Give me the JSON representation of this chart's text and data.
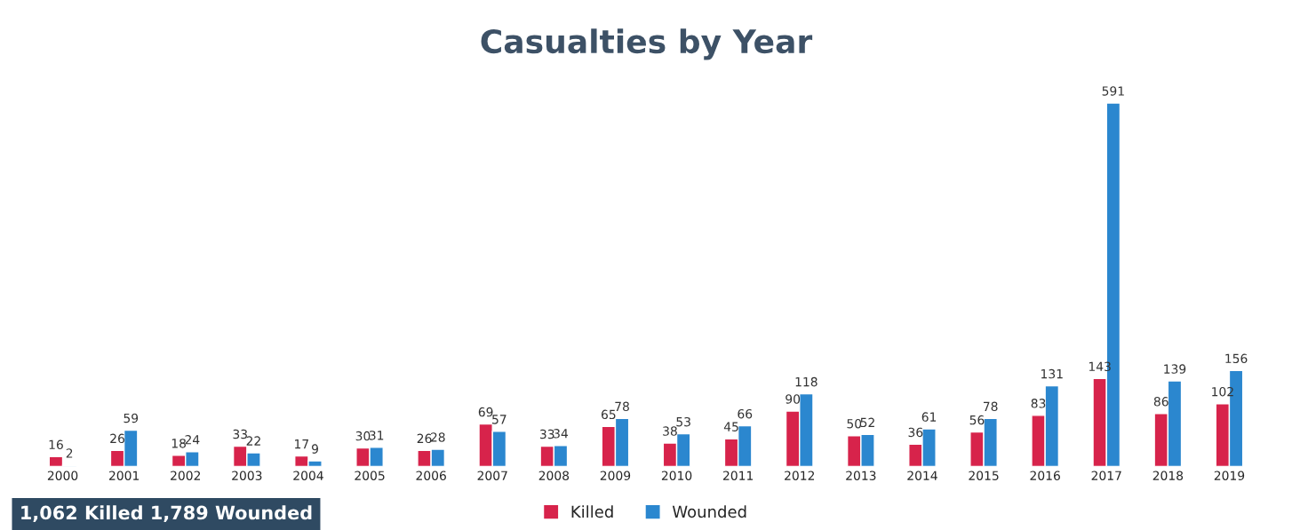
{
  "chart_data": {
    "type": "bar",
    "title": "Casualties by Year",
    "categories": [
      "2000",
      "2001",
      "2002",
      "2003",
      "2004",
      "2005",
      "2006",
      "2007",
      "2008",
      "2009",
      "2010",
      "2011",
      "2012",
      "2013",
      "2014",
      "2015",
      "2016",
      "2017",
      "2018",
      "2019"
    ],
    "series": [
      {
        "name": "Killed",
        "color": "#d7234b",
        "values": [
          16,
          26,
          18,
          33,
          17,
          30,
          26,
          69,
          33,
          65,
          38,
          45,
          90,
          50,
          36,
          56,
          83,
          143,
          86,
          102
        ]
      },
      {
        "name": "Wounded",
        "color": "#2b87cf",
        "values": [
          2,
          59,
          24,
          22,
          9,
          31,
          28,
          57,
          34,
          78,
          53,
          66,
          118,
          52,
          61,
          78,
          131,
          591,
          139,
          156
        ]
      }
    ],
    "data_labels": true,
    "legend": "bottom",
    "grid": false,
    "annotations": [
      "1,062 Killed 1,789 Wounded"
    ]
  }
}
